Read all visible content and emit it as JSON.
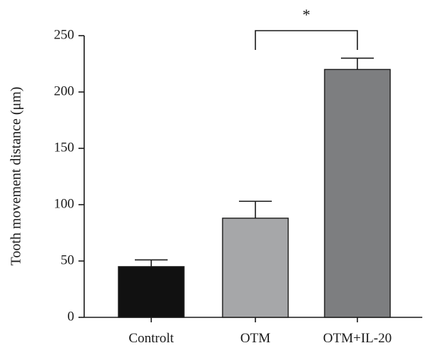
{
  "chart_data": {
    "type": "bar",
    "title": "",
    "xlabel": "",
    "ylabel": "Tooth movement distance (μm)",
    "ylim": [
      0,
      250
    ],
    "yticks": [
      0,
      50,
      100,
      150,
      200,
      250
    ],
    "categories": [
      "Controlt",
      "OTM",
      "OTM+IL-20"
    ],
    "values": [
      45,
      88,
      220
    ],
    "errors": [
      6,
      15,
      10
    ],
    "bar_colors": [
      "#111111",
      "#a6a7a9",
      "#7d7e80"
    ],
    "significance": {
      "from": "OTM",
      "to": "OTM+IL-20",
      "label": "*"
    },
    "grid": false,
    "legend": "none"
  }
}
